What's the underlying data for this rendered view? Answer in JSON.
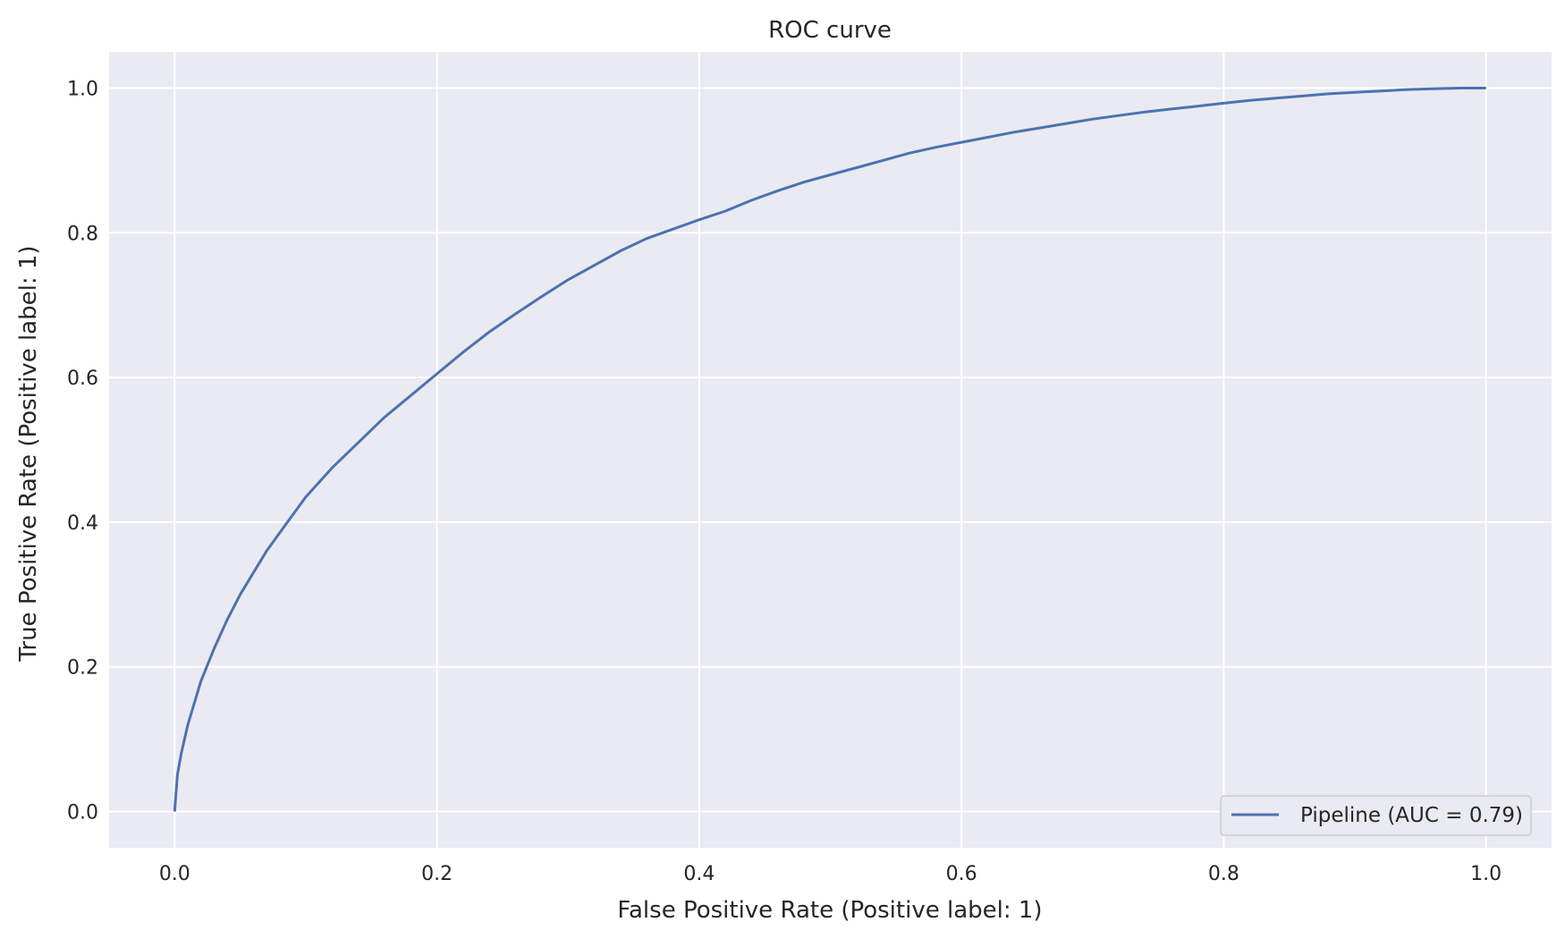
{
  "chart_data": {
    "type": "line",
    "title": "ROC curve",
    "xlabel": "False Positive Rate (Positive label: 1)",
    "ylabel": "True Positive Rate (Positive label: 1)",
    "xlim": [
      -0.05,
      1.05
    ],
    "ylim": [
      -0.05,
      1.05
    ],
    "xticks": [
      "0.0",
      "0.2",
      "0.4",
      "0.6",
      "0.8",
      "1.0"
    ],
    "yticks": [
      "0.0",
      "0.2",
      "0.4",
      "0.6",
      "0.8",
      "1.0"
    ],
    "grid": true,
    "legend_position": "lower-right",
    "colors": {
      "background": "#eaeaf2",
      "grid": "#ffffff",
      "line": "#4c72b0"
    },
    "series": [
      {
        "name": "Pipeline (AUC = 0.79)",
        "x": [
          0.0,
          0.002,
          0.005,
          0.01,
          0.015,
          0.02,
          0.03,
          0.04,
          0.05,
          0.06,
          0.07,
          0.08,
          0.1,
          0.12,
          0.14,
          0.16,
          0.18,
          0.2,
          0.22,
          0.24,
          0.26,
          0.28,
          0.3,
          0.32,
          0.34,
          0.36,
          0.38,
          0.4,
          0.42,
          0.44,
          0.46,
          0.48,
          0.5,
          0.52,
          0.54,
          0.56,
          0.58,
          0.6,
          0.62,
          0.64,
          0.66,
          0.68,
          0.7,
          0.72,
          0.74,
          0.76,
          0.78,
          0.8,
          0.82,
          0.84,
          0.86,
          0.88,
          0.9,
          0.92,
          0.94,
          0.96,
          0.98,
          1.0
        ],
        "y": [
          0.0,
          0.05,
          0.08,
          0.12,
          0.15,
          0.18,
          0.225,
          0.265,
          0.3,
          0.33,
          0.36,
          0.385,
          0.435,
          0.475,
          0.51,
          0.545,
          0.575,
          0.605,
          0.635,
          0.663,
          0.688,
          0.712,
          0.735,
          0.755,
          0.775,
          0.792,
          0.805,
          0.818,
          0.83,
          0.845,
          0.858,
          0.87,
          0.88,
          0.89,
          0.9,
          0.91,
          0.918,
          0.925,
          0.932,
          0.939,
          0.945,
          0.951,
          0.957,
          0.962,
          0.967,
          0.971,
          0.975,
          0.979,
          0.983,
          0.986,
          0.989,
          0.992,
          0.994,
          0.996,
          0.998,
          0.999,
          1.0,
          1.0
        ]
      }
    ]
  }
}
